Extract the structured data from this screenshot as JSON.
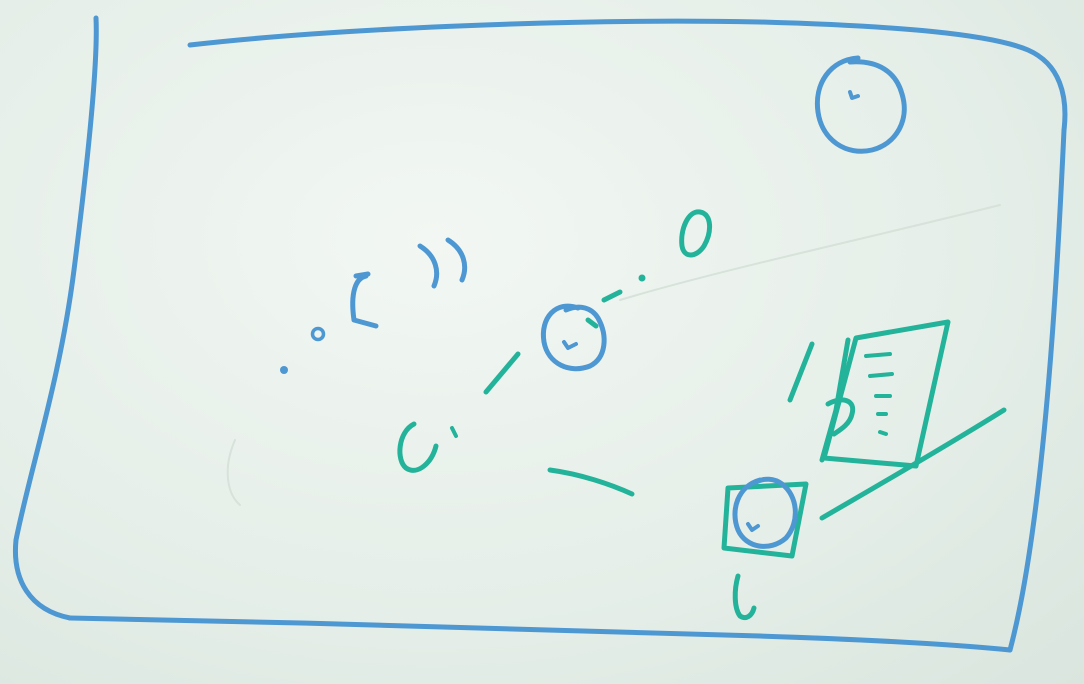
{
  "board": {
    "ink_colors": {
      "blue": "#4d97d2",
      "teal": "#23b39a"
    },
    "surface_color": "#e6efe9"
  },
  "sketch": {
    "elements": [
      {
        "id": "frame",
        "kind": "rounded-rectangle",
        "color": "blue"
      },
      {
        "id": "sun",
        "kind": "circle-with-dot",
        "color": "blue"
      },
      {
        "id": "center-node",
        "kind": "circle-with-dot",
        "color": "blue"
      },
      {
        "id": "bracket-cluster",
        "kind": "dots-and-bracket-arcs",
        "color": "blue"
      },
      {
        "id": "zero-mark",
        "kind": "oval",
        "color": "teal"
      },
      {
        "id": "hook-mark",
        "kind": "curl",
        "color": "teal"
      },
      {
        "id": "document-sheet",
        "kind": "tilted-page-with-lines",
        "color": "teal"
      },
      {
        "id": "square-node",
        "kind": "square-with-circle-and-dot",
        "color": "teal"
      }
    ]
  }
}
